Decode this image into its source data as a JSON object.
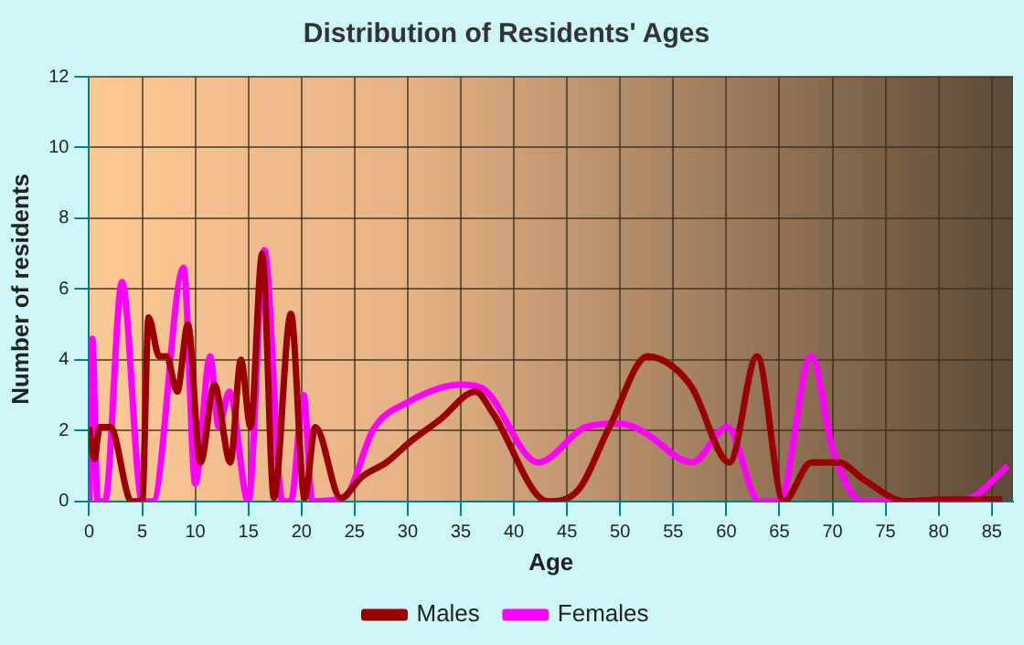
{
  "chart_data": {
    "type": "line",
    "title": "Distribution of Residents' Ages",
    "xlabel": "Age",
    "ylabel": "Number of residents",
    "xlim": [
      0,
      87
    ],
    "xticks": [
      0,
      5,
      10,
      15,
      20,
      25,
      30,
      35,
      40,
      45,
      50,
      55,
      60,
      65,
      70,
      75,
      80,
      85
    ],
    "ylim": [
      0,
      12
    ],
    "yticks": [
      0,
      2,
      4,
      6,
      8,
      10,
      12
    ],
    "grid": true,
    "legend": "bottom",
    "marker": "none",
    "line_style": "solid",
    "series": [
      {
        "name": "Males",
        "color": "#990000",
        "x": [
          0,
          0.5,
          1,
          2,
          4,
          5,
          5.6,
          6.6,
          7.3,
          8.3,
          9.3,
          10.5,
          11.8,
          13.3,
          14.3,
          15.2,
          16.3,
          17.4,
          19,
          20.3,
          21.3,
          23.7,
          25.7,
          28,
          30.3,
          33,
          36.4,
          38,
          43.2,
          46,
          49,
          52.6,
          55,
          56.8,
          60.3,
          62.9,
          65.4,
          68,
          70.6,
          73,
          76.9,
          80,
          86
        ],
        "values": [
          2.1,
          1.2,
          2.1,
          2.1,
          0,
          0,
          5.2,
          4.1,
          4.1,
          3.1,
          5,
          1.1,
          3.3,
          1.1,
          4,
          2.1,
          7,
          0.1,
          5.3,
          0.1,
          2.1,
          0.1,
          0.7,
          1.1,
          1.7,
          2.3,
          3.1,
          2.5,
          0,
          0.3,
          2.1,
          4.1,
          3.8,
          3.2,
          1.1,
          4.1,
          0,
          1.1,
          1.1,
          0.6,
          0,
          0.05,
          0.05
        ]
      },
      {
        "name": "Females",
        "color": "#ff00ff",
        "x": [
          0,
          0.3,
          0.8,
          1.5,
          3.1,
          5,
          6,
          8.9,
          10,
          11.4,
          12.2,
          13.2,
          15,
          16.5,
          18.2,
          19,
          20.2,
          21,
          24,
          26.8,
          30,
          35,
          37,
          42.3,
          46.8,
          50,
          52,
          56.8,
          60.1,
          63.1,
          65,
          68,
          70,
          72.8,
          80,
          83,
          86.5
        ],
        "values": [
          0,
          4.6,
          0,
          0,
          6.2,
          0,
          0,
          6.6,
          0.5,
          4.1,
          2.1,
          3.1,
          0,
          7.1,
          0,
          0,
          3,
          0,
          0.1,
          2.05,
          2.8,
          3.3,
          3.2,
          1.1,
          2.1,
          2.2,
          2,
          1.1,
          2.1,
          0,
          0,
          4.1,
          1.5,
          0,
          0,
          0.1,
          1
        ]
      }
    ]
  }
}
